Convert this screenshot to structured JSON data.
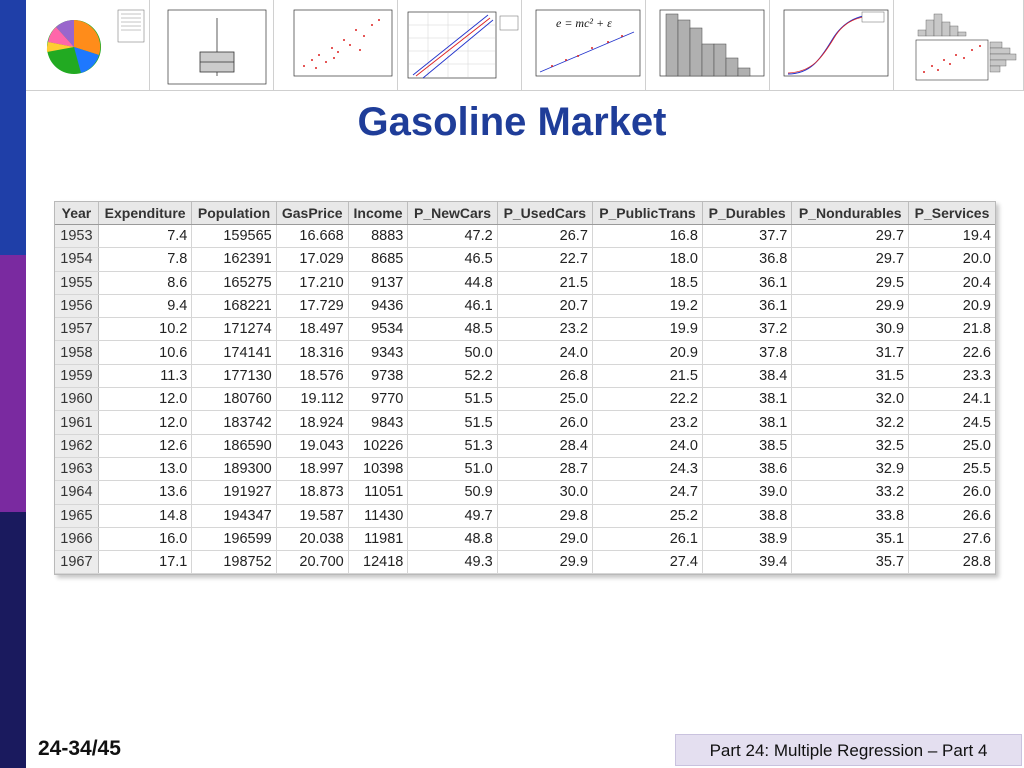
{
  "title": "Gasoline Market",
  "slide_number": "24-34/45",
  "footer": "Part 24: Multiple Regression – Part 4",
  "thumbnails": {
    "formula": "e = mc² + ε"
  },
  "table": {
    "headers": [
      "Year",
      "Expenditure",
      "Population",
      "GasPrice",
      "Income",
      "P_NewCars",
      "P_UsedCars",
      "P_PublicTrans",
      "P_Durables",
      "P_Nondurables",
      "P_Services"
    ],
    "rows": [
      [
        "1953",
        "7.4",
        "159565",
        "16.668",
        "8883",
        "47.2",
        "26.7",
        "16.8",
        "37.7",
        "29.7",
        "19.4"
      ],
      [
        "1954",
        "7.8",
        "162391",
        "17.029",
        "8685",
        "46.5",
        "22.7",
        "18.0",
        "36.8",
        "29.7",
        "20.0"
      ],
      [
        "1955",
        "8.6",
        "165275",
        "17.210",
        "9137",
        "44.8",
        "21.5",
        "18.5",
        "36.1",
        "29.5",
        "20.4"
      ],
      [
        "1956",
        "9.4",
        "168221",
        "17.729",
        "9436",
        "46.1",
        "20.7",
        "19.2",
        "36.1",
        "29.9",
        "20.9"
      ],
      [
        "1957",
        "10.2",
        "171274",
        "18.497",
        "9534",
        "48.5",
        "23.2",
        "19.9",
        "37.2",
        "30.9",
        "21.8"
      ],
      [
        "1958",
        "10.6",
        "174141",
        "18.316",
        "9343",
        "50.0",
        "24.0",
        "20.9",
        "37.8",
        "31.7",
        "22.6"
      ],
      [
        "1959",
        "11.3",
        "177130",
        "18.576",
        "9738",
        "52.2",
        "26.8",
        "21.5",
        "38.4",
        "31.5",
        "23.3"
      ],
      [
        "1960",
        "12.0",
        "180760",
        "19.112",
        "9770",
        "51.5",
        "25.0",
        "22.2",
        "38.1",
        "32.0",
        "24.1"
      ],
      [
        "1961",
        "12.0",
        "183742",
        "18.924",
        "9843",
        "51.5",
        "26.0",
        "23.2",
        "38.1",
        "32.2",
        "24.5"
      ],
      [
        "1962",
        "12.6",
        "186590",
        "19.043",
        "10226",
        "51.3",
        "28.4",
        "24.0",
        "38.5",
        "32.5",
        "25.0"
      ],
      [
        "1963",
        "13.0",
        "189300",
        "18.997",
        "10398",
        "51.0",
        "28.7",
        "24.3",
        "38.6",
        "32.9",
        "25.5"
      ],
      [
        "1964",
        "13.6",
        "191927",
        "18.873",
        "11051",
        "50.9",
        "30.0",
        "24.7",
        "39.0",
        "33.2",
        "26.0"
      ],
      [
        "1965",
        "14.8",
        "194347",
        "19.587",
        "11430",
        "49.7",
        "29.8",
        "25.2",
        "38.8",
        "33.8",
        "26.6"
      ],
      [
        "1966",
        "16.0",
        "196599",
        "20.038",
        "11981",
        "48.8",
        "29.0",
        "26.1",
        "38.9",
        "35.1",
        "27.6"
      ],
      [
        "1967",
        "17.1",
        "198752",
        "20.700",
        "12418",
        "49.3",
        "29.9",
        "27.4",
        "39.4",
        "35.7",
        "28.8"
      ]
    ]
  },
  "colors": {
    "title": "#1f3d99",
    "sidebar_top": "#1f3fa8",
    "sidebar_mid": "#7a2aa0",
    "sidebar_bottom": "#1a1a5e",
    "footer_bg": "#e4dff0"
  }
}
